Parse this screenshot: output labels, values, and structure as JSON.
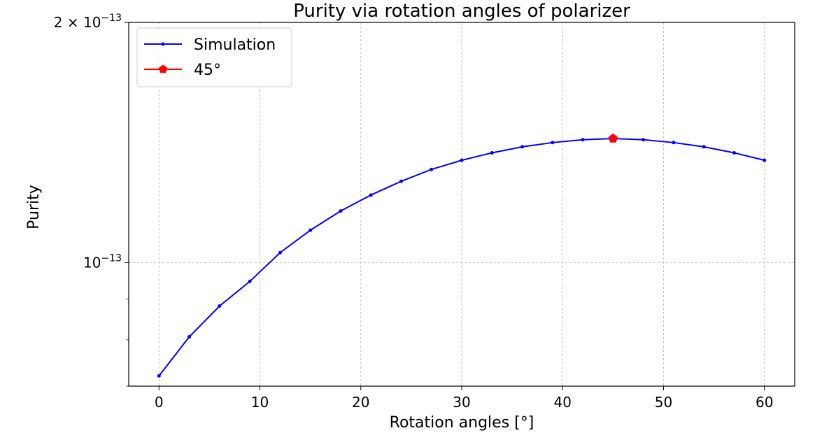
{
  "chart_data": {
    "type": "line",
    "title": "Purity via rotation angles of polarizer",
    "xlabel": "Rotation angles [°]",
    "ylabel": "Purity",
    "xlim": [
      -3,
      63
    ],
    "ylim": [
      7e-14,
      2e-13
    ],
    "yscale": "log",
    "grid": true,
    "legend_position": "top-left",
    "x_ticks": [
      0,
      10,
      20,
      30,
      40,
      50,
      60
    ],
    "x_tick_labels": [
      "0",
      "10",
      "20",
      "30",
      "40",
      "50",
      "60"
    ],
    "y_major_ticks": [
      {
        "value": 1e-13,
        "base": "10",
        "exp": "−13",
        "prefix": ""
      },
      {
        "value": 2e-13,
        "base": "10",
        "exp": "−13",
        "prefix": "2 × "
      }
    ],
    "y_minor_ticks": [
      7e-14,
      8e-14,
      9e-14
    ],
    "series": [
      {
        "name": "Simulation",
        "color": "#0000ff",
        "marker": "dot",
        "x": [
          0,
          3,
          6,
          9,
          12,
          15,
          18,
          21,
          24,
          27,
          30,
          33,
          36,
          39,
          42,
          45,
          48,
          51,
          54,
          57,
          60
        ],
        "y": [
          7.21e-14,
          8.07e-14,
          8.82e-14,
          9.47e-14,
          1.0289e-13,
          1.0978e-13,
          1.1604e-13,
          1.2151e-13,
          1.2643e-13,
          1.3083e-13,
          1.3434e-13,
          1.3726e-13,
          1.3966e-13,
          1.4138e-13,
          1.4254e-13,
          1.4304e-13,
          1.4254e-13,
          1.4138e-13,
          1.3966e-13,
          1.3726e-13,
          1.3434e-13
        ]
      },
      {
        "name": "45°",
        "color": "#ff0000",
        "marker": "pentagon",
        "x": [
          45
        ],
        "y": [
          1.4304e-13
        ]
      }
    ]
  }
}
